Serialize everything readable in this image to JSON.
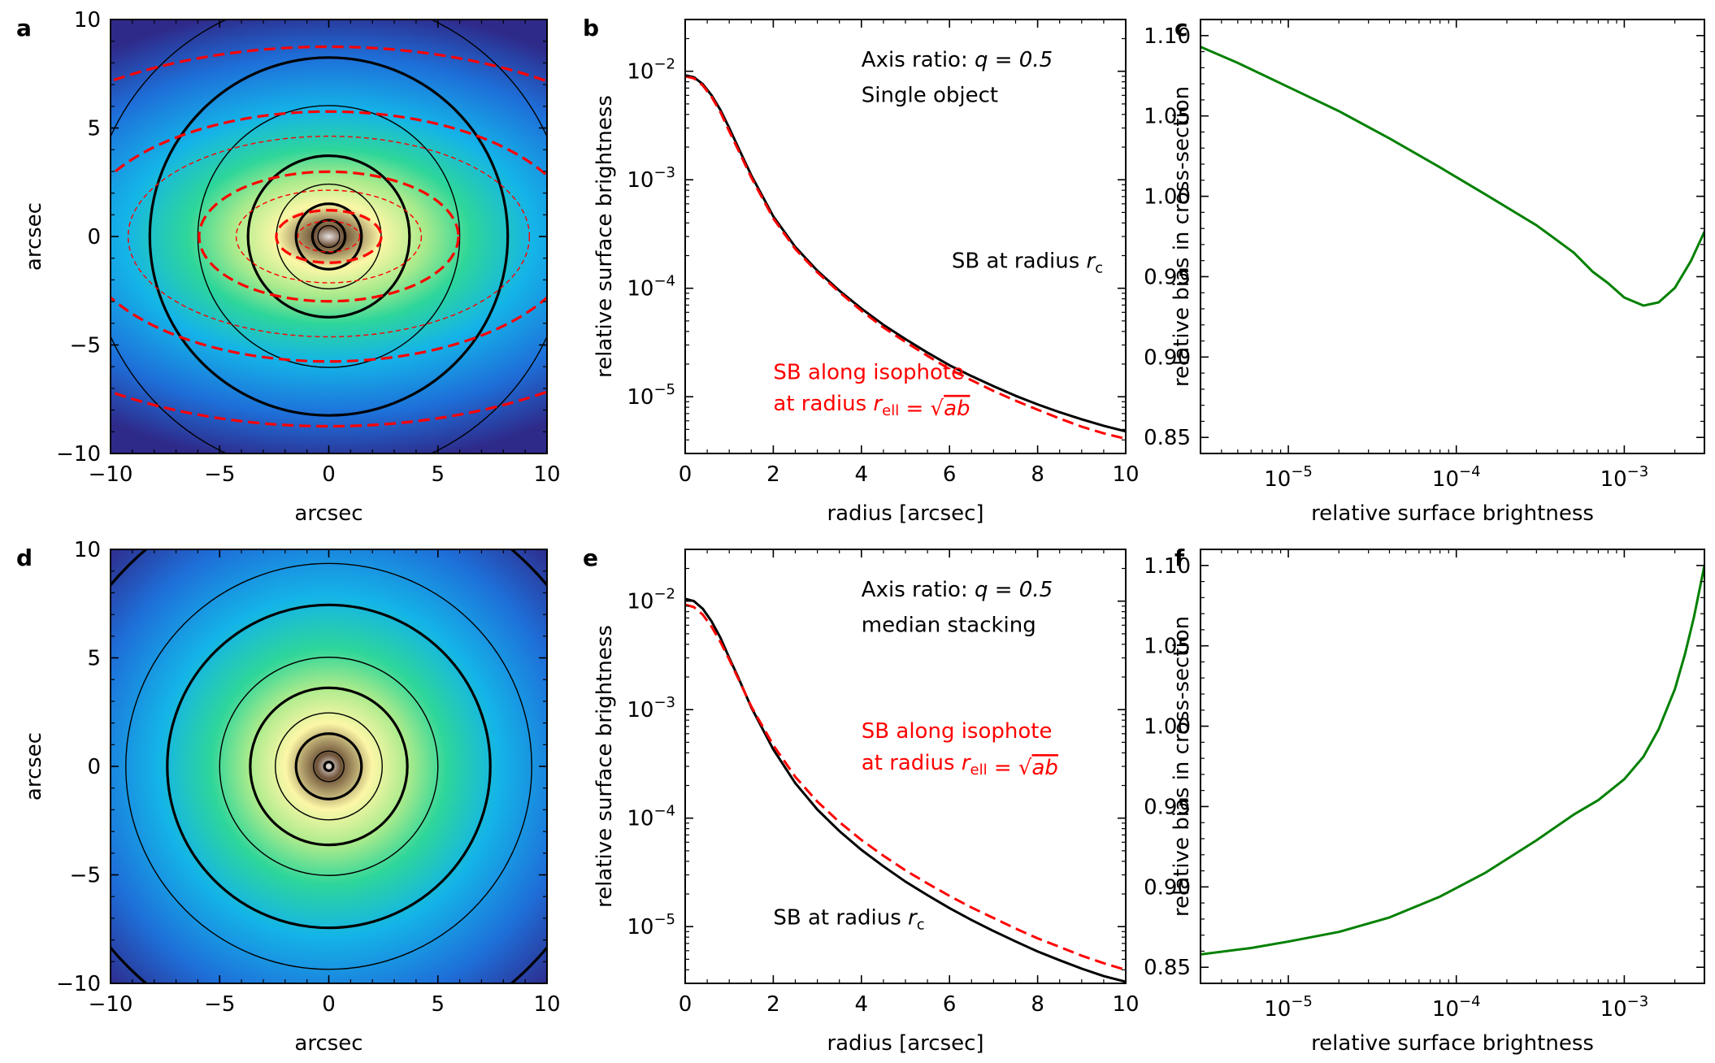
{
  "colors": {
    "red": "#ff0000",
    "green": "#008000",
    "black": "#000000"
  },
  "chart_data": [
    {
      "id": "a",
      "panel_label": "a",
      "type": "heatmap",
      "description_note": "2D image of an elliptical galaxy model with axis ratio 0.5; black circular contours and red dashed elliptical isophotes",
      "xlabel": "arcsec",
      "ylabel": "arcsec",
      "xlim": [
        -10,
        10
      ],
      "ylim": [
        -10,
        10
      ],
      "xticks": [
        -10,
        -5,
        0,
        5,
        10
      ],
      "yticks": [
        -10,
        -5,
        0,
        5,
        10
      ],
      "xtick_labels": [
        "−10",
        "−5",
        "0",
        "5",
        "10"
      ],
      "ytick_labels": [
        "−10",
        "−5",
        "0",
        "5",
        "10"
      ],
      "colormap_stops": [
        "#2e2a8a",
        "#1e6fd9",
        "#14b4e8",
        "#2ed69a",
        "#a8ea8c",
        "#fcf7a6",
        "#6e5238",
        "#e7e1e1"
      ],
      "black_contour_radii": [
        0.5,
        0.75,
        1.5,
        2.4,
        3.7,
        6.0,
        8.2,
        11.0
      ],
      "black_contour_thick": [
        false,
        true,
        true,
        false,
        true,
        false,
        true,
        false
      ],
      "red_isophote_radii": [
        1.0,
        1.7,
        3.0,
        4.2,
        6.5,
        8.1,
        12.3
      ],
      "red_isophote_thick": [
        false,
        true,
        false,
        true,
        false,
        true,
        true
      ],
      "axis_ratio": 0.5
    },
    {
      "id": "b",
      "panel_label": "b",
      "type": "line",
      "xlabel": "radius [arcsec]",
      "ylabel": "relative surface brightness",
      "xlim": [
        0,
        10
      ],
      "ylim": [
        3e-06,
        0.03
      ],
      "yscale": "log",
      "xticks": [
        0,
        2,
        4,
        6,
        8,
        10
      ],
      "xtick_labels": [
        "0",
        "2",
        "4",
        "6",
        "8",
        "10"
      ],
      "ytick_exponents": [
        -5,
        -4,
        -3,
        -2
      ],
      "annotations": [
        {
          "text": "Axis ratio: ",
          "math": "q = 0.5",
          "color": "#000000",
          "x": 4.0,
          "y": 0.011
        },
        {
          "text": "Single object",
          "color": "#000000",
          "x": 4.0,
          "y": 0.0052
        },
        {
          "text": "SB at radius ",
          "math": "r",
          "sub": "c",
          "color": "#000000",
          "x": 6.05,
          "y": 0.000155
        },
        {
          "text": "SB along isophote",
          "color": "#ff0000",
          "x": 2.0,
          "y": 1.45e-05
        },
        {
          "text": "at radius ",
          "math": "r",
          "sub": "ell",
          "eq": " = √",
          "over": "ab",
          "color": "#ff0000",
          "x": 2.0,
          "y": 7.5e-06
        }
      ],
      "series": [
        {
          "name": "SB at radius r_c",
          "color": "#000000",
          "style": "solid",
          "x": [
            0,
            0.2,
            0.4,
            0.6,
            0.8,
            1.0,
            1.2,
            1.5,
            2.0,
            2.5,
            3.0,
            3.5,
            4.0,
            4.5,
            5.0,
            5.5,
            6.0,
            6.5,
            7.0,
            7.5,
            8.0,
            8.5,
            9.0,
            9.5,
            10.0
          ],
          "y": [
            0.0092,
            0.0088,
            0.0076,
            0.006,
            0.0044,
            0.003,
            0.002,
            0.0011,
            0.00046,
            0.00024,
            0.000145,
            9.5e-05,
            6.5e-05,
            4.6e-05,
            3.4e-05,
            2.55e-05,
            1.95e-05,
            1.55e-05,
            1.25e-05,
            1.02e-05,
            8.5e-06,
            7.2e-06,
            6.2e-06,
            5.4e-06,
            4.8e-06
          ]
        },
        {
          "name": "SB along isophote at radius r_ell = √ab",
          "color": "#ff0000",
          "style": "dashed",
          "x": [
            0,
            0.2,
            0.4,
            0.6,
            0.8,
            1.0,
            1.2,
            1.5,
            2.0,
            2.5,
            3.0,
            3.5,
            4.0,
            4.5,
            5.0,
            5.5,
            6.0,
            6.5,
            7.0,
            7.5,
            8.0,
            8.5,
            9.0,
            9.5,
            10.0
          ],
          "y": [
            0.009,
            0.0086,
            0.0074,
            0.0058,
            0.0042,
            0.0028,
            0.0019,
            0.00105,
            0.00044,
            0.00023,
            0.00014,
            9.2e-05,
            6.2e-05,
            4.35e-05,
            3.2e-05,
            2.38e-05,
            1.8e-05,
            1.42e-05,
            1.13e-05,
            9.2e-06,
            7.6e-06,
            6.3e-06,
            5.3e-06,
            4.6e-06,
            4.1e-06
          ]
        }
      ]
    },
    {
      "id": "c",
      "panel_label": "c",
      "type": "line",
      "xlabel": "relative surface brightness",
      "ylabel": "relative bias in cross-section",
      "xscale": "log",
      "xlim": [
        3e-06,
        0.003
      ],
      "ylim": [
        0.84,
        1.11
      ],
      "xtick_exponents": [
        -5,
        -4,
        -3
      ],
      "yticks": [
        0.85,
        0.9,
        0.95,
        1.0,
        1.05,
        1.1
      ],
      "ytick_labels": [
        "0.85",
        "0.90",
        "0.95",
        "1.00",
        "1.05",
        "1.10"
      ],
      "series": [
        {
          "name": "bias",
          "color": "#008000",
          "x": [
            3e-06,
            5e-06,
            1e-05,
            2e-05,
            4e-05,
            8e-05,
            0.00015,
            0.0003,
            0.0005,
            0.00065,
            0.0008,
            0.001,
            0.0013,
            0.0016,
            0.002,
            0.0025,
            0.003
          ],
          "y": [
            1.093,
            1.083,
            1.068,
            1.053,
            1.036,
            1.018,
            1.001,
            0.982,
            0.965,
            0.953,
            0.946,
            0.937,
            0.932,
            0.934,
            0.943,
            0.96,
            0.978
          ]
        }
      ]
    },
    {
      "id": "d",
      "panel_label": "d",
      "type": "heatmap",
      "description_note": "2D image of the median-stacked galaxy model; circular contours only",
      "xlabel": "arcsec",
      "ylabel": "arcsec",
      "xlim": [
        -10,
        10
      ],
      "ylim": [
        -10,
        10
      ],
      "xticks": [
        -10,
        -5,
        0,
        5,
        10
      ],
      "yticks": [
        -10,
        -5,
        0,
        5,
        10
      ],
      "xtick_labels": [
        "−10",
        "−5",
        "0",
        "5",
        "10"
      ],
      "ytick_labels": [
        "−10",
        "−5",
        "0",
        "5",
        "10"
      ],
      "colormap_stops": [
        "#2e2a8a",
        "#1e6fd9",
        "#14b4e8",
        "#2ed69a",
        "#a8ea8c",
        "#fcf7a6",
        "#6e5238",
        "#e7e1e1"
      ],
      "black_contour_radii": [
        0.2,
        0.7,
        1.5,
        2.45,
        3.6,
        5.0,
        7.4,
        9.3,
        13.0
      ],
      "black_contour_thick": [
        true,
        false,
        true,
        false,
        true,
        false,
        true,
        false,
        true
      ]
    },
    {
      "id": "e",
      "panel_label": "e",
      "type": "line",
      "xlabel": "radius [arcsec]",
      "ylabel": "relative surface brightness",
      "xlim": [
        0,
        10
      ],
      "ylim": [
        3e-06,
        0.03
      ],
      "yscale": "log",
      "xticks": [
        0,
        2,
        4,
        6,
        8,
        10
      ],
      "xtick_labels": [
        "0",
        "2",
        "4",
        "6",
        "8",
        "10"
      ],
      "ytick_exponents": [
        -5,
        -4,
        -3,
        -2
      ],
      "annotations": [
        {
          "text": "Axis ratio: ",
          "math": "q = 0.5",
          "color": "#000000",
          "x": 4.0,
          "y": 0.011
        },
        {
          "text": "median stacking",
          "color": "#000000",
          "x": 4.0,
          "y": 0.0052
        },
        {
          "text": "SB along isophote",
          "color": "#ff0000",
          "x": 4.0,
          "y": 0.00055
        },
        {
          "text": "at radius ",
          "math": "r",
          "sub": "ell",
          "eq": " = √",
          "over": "ab",
          "color": "#ff0000",
          "x": 4.0,
          "y": 0.00028
        },
        {
          "text": "SB at radius ",
          "math": "r",
          "sub": "c",
          "color": "#000000",
          "x": 2.0,
          "y": 1.05e-05
        }
      ],
      "series": [
        {
          "name": "SB at radius r_c",
          "color": "#000000",
          "style": "solid",
          "x": [
            0,
            0.2,
            0.4,
            0.6,
            0.8,
            1.0,
            1.2,
            1.5,
            2.0,
            2.5,
            3.0,
            3.5,
            4.0,
            4.5,
            5.0,
            5.5,
            6.0,
            6.5,
            7.0,
            7.5,
            8.0,
            8.5,
            9.0,
            9.5,
            10.0
          ],
          "y": [
            0.0105,
            0.01,
            0.0085,
            0.0065,
            0.0046,
            0.003,
            0.002,
            0.00105,
            0.00043,
            0.00021,
            0.00012,
            7.6e-05,
            5.1e-05,
            3.6e-05,
            2.6e-05,
            1.95e-05,
            1.48e-05,
            1.15e-05,
            9.1e-06,
            7.3e-06,
            5.9e-06,
            4.9e-06,
            4.1e-06,
            3.5e-06,
            3.1e-06
          ]
        },
        {
          "name": "SB along isophote at radius r_ell = √ab",
          "color": "#ff0000",
          "style": "dashed",
          "x": [
            0,
            0.2,
            0.4,
            0.6,
            0.8,
            1.0,
            1.2,
            1.5,
            2.0,
            2.5,
            3.0,
            3.5,
            4.0,
            4.5,
            5.0,
            5.5,
            6.0,
            6.5,
            7.0,
            7.5,
            8.0,
            8.5,
            9.0,
            9.5,
            10.0
          ],
          "y": [
            0.0093,
            0.0088,
            0.0075,
            0.0058,
            0.0042,
            0.0029,
            0.00195,
            0.00107,
            0.00047,
            0.00024,
            0.000142,
            9.2e-05,
            6.3e-05,
            4.5e-05,
            3.3e-05,
            2.5e-05,
            1.92e-05,
            1.5e-05,
            1.2e-05,
            9.6e-06,
            7.8e-06,
            6.5e-06,
            5.4e-06,
            4.6e-06,
            4e-06
          ]
        }
      ]
    },
    {
      "id": "f",
      "panel_label": "f",
      "type": "line",
      "xlabel": "relative surface brightness",
      "ylabel": "relative bias in cross-section",
      "xscale": "log",
      "xlim": [
        3e-06,
        0.003
      ],
      "ylim": [
        0.84,
        1.11
      ],
      "xtick_exponents": [
        -5,
        -4,
        -3
      ],
      "yticks": [
        0.85,
        0.9,
        0.95,
        1.0,
        1.05,
        1.1
      ],
      "ytick_labels": [
        "0.85",
        "0.90",
        "0.95",
        "1.00",
        "1.05",
        "1.10"
      ],
      "series": [
        {
          "name": "bias",
          "color": "#008000",
          "x": [
            3e-06,
            6e-06,
            1e-05,
            2e-05,
            4e-05,
            8e-05,
            0.00015,
            0.0003,
            0.0005,
            0.0007,
            0.001,
            0.0013,
            0.0016,
            0.002,
            0.0023,
            0.0026,
            0.003
          ],
          "y": [
            0.858,
            0.862,
            0.866,
            0.872,
            0.881,
            0.894,
            0.909,
            0.929,
            0.945,
            0.954,
            0.967,
            0.981,
            0.998,
            1.023,
            1.045,
            1.068,
            1.1
          ]
        }
      ]
    }
  ]
}
